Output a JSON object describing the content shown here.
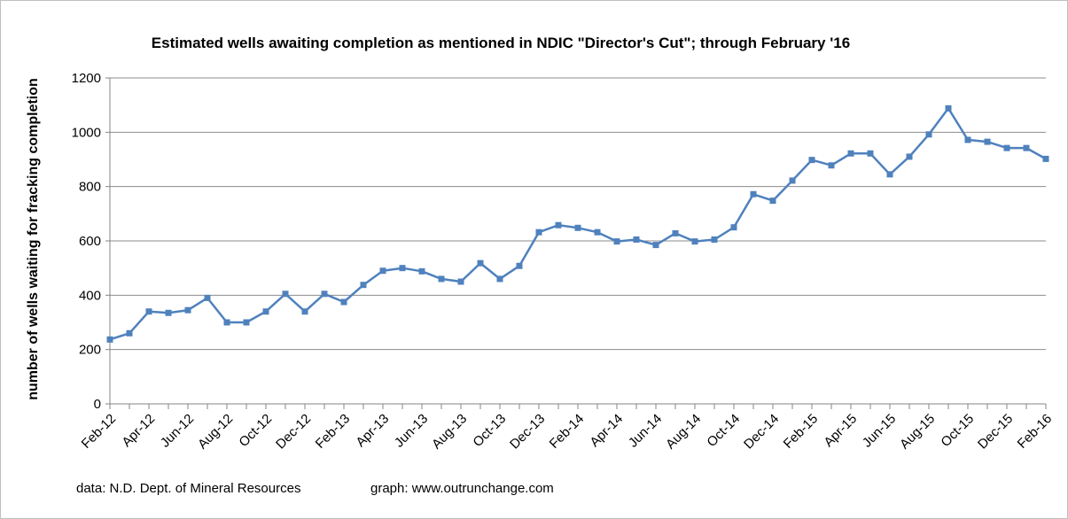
{
  "chart_data": {
    "type": "line",
    "title": "Estimated wells awaiting completion as mentioned in NDIC \"Director's Cut\"; through February '16",
    "ylabel": "number of wells waiting for fracking completion",
    "xlabel": "",
    "ylim": [
      0,
      1200
    ],
    "yticks": [
      0,
      200,
      400,
      600,
      800,
      1000,
      1200
    ],
    "grid": "horizontal",
    "legend": "none",
    "color": "#4f81bd",
    "x": [
      "Feb-12",
      "Mar-12",
      "Apr-12",
      "May-12",
      "Jun-12",
      "Jul-12",
      "Aug-12",
      "Sep-12",
      "Oct-12",
      "Nov-12",
      "Dec-12",
      "Jan-13",
      "Feb-13",
      "Mar-13",
      "Apr-13",
      "May-13",
      "Jun-13",
      "Jul-13",
      "Aug-13",
      "Sep-13",
      "Oct-13",
      "Nov-13",
      "Dec-13",
      "Jan-14",
      "Feb-14",
      "Mar-14",
      "Apr-14",
      "May-14",
      "Jun-14",
      "Jul-14",
      "Aug-14",
      "Sep-14",
      "Oct-14",
      "Nov-14",
      "Dec-14",
      "Jan-15",
      "Feb-15",
      "Mar-15",
      "Apr-15",
      "May-15",
      "Jun-15",
      "Jul-15",
      "Aug-15",
      "Sep-15",
      "Oct-15",
      "Nov-15",
      "Dec-15",
      "Jan-16",
      "Feb-16"
    ],
    "x_tick_labels": [
      "Feb-12",
      "Apr-12",
      "Jun-12",
      "Aug-12",
      "Oct-12",
      "Dec-12",
      "Feb-13",
      "Apr-13",
      "Jun-13",
      "Aug-13",
      "Oct-13",
      "Dec-13",
      "Feb-14",
      "Apr-14",
      "Jun-14",
      "Aug-14",
      "Oct-14",
      "Dec-14",
      "Feb-15",
      "Apr-15",
      "Jun-15",
      "Aug-15",
      "Oct-15",
      "Dec-15",
      "Feb-16"
    ],
    "values": [
      237,
      260,
      340,
      335,
      345,
      390,
      300,
      300,
      340,
      405,
      340,
      405,
      375,
      438,
      490,
      500,
      488,
      460,
      450,
      518,
      460,
      508,
      632,
      658,
      648,
      632,
      598,
      605,
      585,
      628,
      598,
      605,
      650,
      772,
      748,
      822,
      898,
      878,
      922,
      922,
      845,
      910,
      992,
      1088,
      972,
      965,
      942,
      942,
      902
    ]
  },
  "footer": {
    "data_credit": "data: N.D. Dept. of Mineral Resources",
    "graph_credit": "graph:  www.outrunchange.com"
  }
}
